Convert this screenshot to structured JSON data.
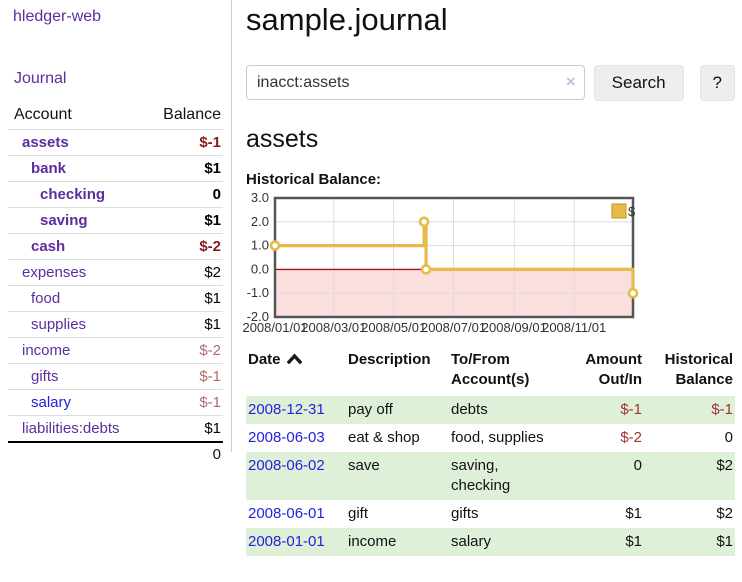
{
  "sidebar": {
    "app_title": "hledger-web",
    "journal_link": "Journal",
    "accounts": {
      "header_account": "Account",
      "header_balance": "Balance",
      "rows": [
        {
          "name": "assets",
          "balance": "$-1"
        },
        {
          "name": "bank",
          "balance": "$1"
        },
        {
          "name": "checking",
          "balance": "0"
        },
        {
          "name": "saving",
          "balance": "$1"
        },
        {
          "name": "cash",
          "balance": "$-2"
        },
        {
          "name": "expenses",
          "balance": "$2"
        },
        {
          "name": "food",
          "balance": "$1"
        },
        {
          "name": "supplies",
          "balance": "$1"
        },
        {
          "name": "income",
          "balance": "$-2"
        },
        {
          "name": "gifts",
          "balance": "$-1"
        },
        {
          "name": "salary",
          "balance": "$-1"
        },
        {
          "name": "liabilities:debts",
          "balance": "$1"
        }
      ],
      "total": "0"
    }
  },
  "main": {
    "title": "sample.journal",
    "search": {
      "value": "inacct:assets",
      "clear_icon": "×",
      "button_label": "Search",
      "help_label": "?"
    },
    "account_heading": "assets",
    "chart_label": "Historical Balance:",
    "register": {
      "headers": {
        "date": "Date",
        "description": "Description",
        "accounts": "To/From Account(s)",
        "amount": "Amount Out/In",
        "balance": "Historical Balance"
      },
      "rows": [
        {
          "date": "2008-12-31",
          "description": "pay off",
          "accounts": "debts",
          "amount": "$-1",
          "balance": "$-1"
        },
        {
          "date": "2008-06-03",
          "description": "eat & shop",
          "accounts": "food, supplies",
          "amount": "$-2",
          "balance": "0"
        },
        {
          "date": "2008-06-02",
          "description": "save",
          "accounts": "saving,\nchecking",
          "amount": "0",
          "balance": "$2"
        },
        {
          "date": "2008-06-01",
          "description": "gift",
          "accounts": "gifts",
          "amount": "$1",
          "balance": "$2"
        },
        {
          "date": "2008-01-01",
          "description": "income",
          "accounts": "salary",
          "amount": "$1",
          "balance": "$1"
        }
      ]
    }
  },
  "chart_data": {
    "type": "line",
    "title": "Historical Balance:",
    "series": [
      {
        "name": "$",
        "step": true,
        "points": [
          {
            "date": "2008/01/01",
            "value": 1.0
          },
          {
            "date": "2008/06/01",
            "value": 2.0
          },
          {
            "date": "2008/06/03",
            "value": 0.0
          },
          {
            "date": "2008/12/31",
            "value": -1.0
          }
        ]
      }
    ],
    "ylim": [
      -2.0,
      3.0
    ],
    "y_ticks": [
      "3.0",
      "2.0",
      "1.0",
      "0.0",
      "-1.0",
      "-2.0"
    ],
    "x_ticks": [
      "2008/01/01",
      "2008/03/01",
      "2008/05/01",
      "2008/07/01",
      "2008/09/01",
      "2008/11/01"
    ],
    "x_range": [
      "2008/01/01",
      "2008/12/31"
    ],
    "legend": {
      "label": "$",
      "position": "top-right"
    },
    "grid": true
  },
  "colors": {
    "purple_link": "#5c2d9e",
    "blue_link": "#2222dd",
    "negative_strong": "#8b1a1a",
    "negative_muted": "#b26b6b",
    "row_stripe_green": "#dff0d8",
    "line_gold": "#e7bb4a",
    "zero_line_red": "#a11212",
    "negative_area_pink": "#fbdede"
  }
}
